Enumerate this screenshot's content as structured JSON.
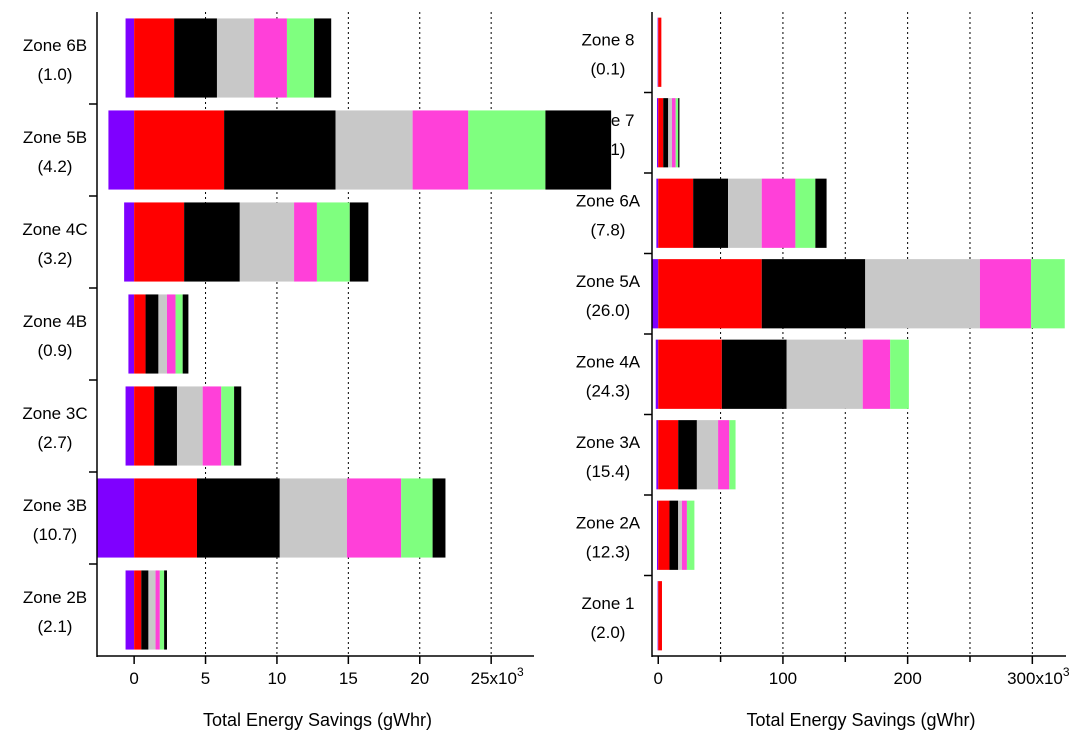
{
  "segment_colors": [
    "#7f00ff",
    "#ff0000",
    "#000000",
    "#c8c8c8",
    "#ff40d9",
    "#7fff7f"
  ],
  "chart_data": [
    {
      "type": "bar",
      "orientation": "horizontal",
      "stacked": true,
      "xlabel": "Total Energy Savings (gWhr)",
      "xlim": [
        -2.6,
        28
      ],
      "xticks": [
        0,
        5,
        10,
        15,
        20,
        25
      ],
      "xtick_labels": [
        "0",
        "5",
        "10",
        "15",
        "20",
        "25x10"
      ],
      "xtick_exponent": "3",
      "vgrid_at": [
        5,
        10,
        15,
        20,
        25
      ],
      "categories": [
        {
          "name": "Zone 6B",
          "sub": "(1.0)"
        },
        {
          "name": "Zone 5B",
          "sub": "(4.2)"
        },
        {
          "name": "Zone 4C",
          "sub": "(3.2)"
        },
        {
          "name": "Zone 4B",
          "sub": "(0.9)"
        },
        {
          "name": "Zone 3C",
          "sub": "(2.7)"
        },
        {
          "name": "Zone 3B",
          "sub": "(10.7)"
        },
        {
          "name": "Zone 2B",
          "sub": "(2.1)"
        }
      ],
      "neg_values": [
        -0.6,
        -1.8,
        -0.7,
        -0.4,
        -0.6,
        -2.6,
        -0.6
      ],
      "series_values": [
        [
          2.8,
          3.0,
          2.6,
          2.3,
          1.9,
          1.2
        ],
        [
          6.3,
          7.8,
          5.4,
          3.9,
          5.4,
          4.6
        ],
        [
          3.5,
          3.9,
          3.8,
          1.6,
          2.3,
          1.3
        ],
        [
          0.8,
          0.9,
          0.6,
          0.6,
          0.5,
          0.4
        ],
        [
          1.4,
          1.6,
          1.8,
          1.3,
          0.9,
          0.5
        ],
        [
          4.4,
          5.8,
          4.7,
          3.8,
          2.2,
          0.9
        ],
        [
          0.5,
          0.5,
          0.5,
          0.3,
          0.3,
          0.2
        ]
      ]
    },
    {
      "type": "bar",
      "orientation": "horizontal",
      "stacked": true,
      "xlabel": "Total Energy Savings (gWhr)",
      "xlim": [
        -5,
        327
      ],
      "xticks": [
        0,
        100,
        200,
        300
      ],
      "xtick_labels": [
        "0",
        "100",
        "200",
        "300x10"
      ],
      "xtick_exponent": "3",
      "minor_ticks": [
        50,
        150,
        250
      ],
      "vgrid_at": [
        50,
        100,
        150,
        200,
        250,
        300
      ],
      "categories": [
        {
          "name": "Zone 8",
          "sub": "(0.1)"
        },
        {
          "name": "Zone 7",
          "sub": "(1.1)"
        },
        {
          "name": "Zone 6A",
          "sub": "(7.8)"
        },
        {
          "name": "Zone 5A",
          "sub": "(26.0)"
        },
        {
          "name": "Zone 4A",
          "sub": "(24.3)"
        },
        {
          "name": "Zone 3A",
          "sub": "(15.4)"
        },
        {
          "name": "Zone 2A",
          "sub": "(12.3)"
        },
        {
          "name": "Zone 1",
          "sub": "(2.0)"
        }
      ],
      "neg_values": [
        -0.5,
        -1,
        -1.5,
        -5,
        -2,
        -1.5,
        -1,
        -0.5
      ],
      "series_values": [
        [
          2.5,
          0,
          0,
          0,
          0,
          0
        ],
        [
          4,
          4,
          3,
          3,
          2,
          1
        ],
        [
          28,
          28,
          27,
          27,
          16,
          9
        ],
        [
          83,
          83,
          92,
          41,
          27,
          0
        ],
        [
          51,
          52,
          61,
          22,
          15,
          0
        ],
        [
          16,
          15,
          17,
          9,
          5,
          0
        ],
        [
          9,
          7,
          3,
          4,
          6,
          0
        ],
        [
          3,
          0,
          0,
          0,
          0,
          0
        ]
      ]
    }
  ]
}
